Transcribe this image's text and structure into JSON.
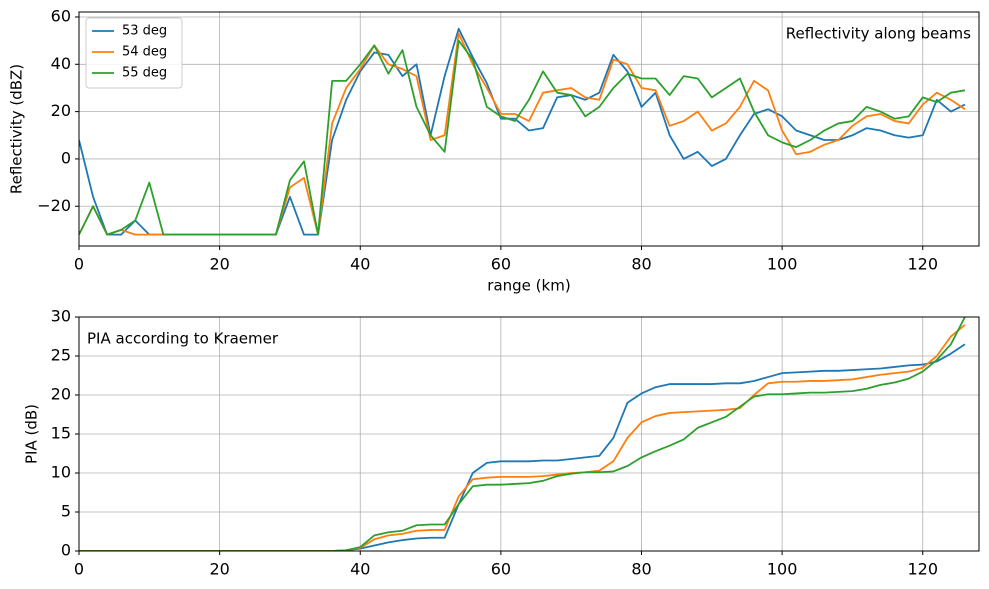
{
  "chart_data": [
    {
      "type": "line",
      "annotation": "Reflectivity along beams",
      "annotation_loc": "upper right",
      "x_label": "range (km)",
      "y_label": "Reflectivity (dBZ)",
      "x": [
        0,
        2,
        4,
        6,
        8,
        10,
        12,
        14,
        16,
        18,
        20,
        22,
        24,
        26,
        28,
        30,
        32,
        34,
        36,
        38,
        40,
        42,
        44,
        46,
        48,
        50,
        52,
        54,
        56,
        58,
        60,
        62,
        64,
        66,
        68,
        70,
        72,
        74,
        76,
        78,
        80,
        82,
        84,
        86,
        88,
        90,
        92,
        94,
        96,
        98,
        100,
        102,
        104,
        106,
        108,
        110,
        112,
        114,
        116,
        118,
        120,
        122,
        124,
        126
      ],
      "series": [
        {
          "name": "53 deg",
          "color": "#1f77b4",
          "values": [
            8,
            -16,
            -32,
            -32,
            -26,
            -32,
            -32,
            -32,
            -32,
            -32,
            -32,
            -32,
            -32,
            -32,
            -32,
            -16,
            -32,
            -32,
            8,
            25,
            37,
            45,
            44,
            35,
            40,
            10,
            35,
            55,
            43,
            32,
            17,
            17,
            12,
            13,
            26,
            27,
            25,
            28,
            44,
            37,
            22,
            28,
            10,
            0,
            3,
            -3,
            0,
            10,
            19,
            21,
            18,
            12,
            10,
            8,
            8,
            10,
            13,
            12,
            10,
            9,
            10,
            25,
            20,
            23
          ]
        },
        {
          "name": "54 deg",
          "color": "#ff7f0e",
          "values": [
            -32,
            -20,
            -32,
            -30,
            -32,
            -32,
            -32,
            -32,
            -32,
            -32,
            -32,
            -32,
            -32,
            -32,
            -32,
            -12,
            -8,
            -32,
            15,
            30,
            38,
            48,
            40,
            38,
            35,
            8,
            10,
            53,
            40,
            30,
            19,
            19,
            16,
            28,
            29,
            30,
            26,
            25,
            42,
            40,
            30,
            29,
            14,
            16,
            20,
            12,
            15,
            22,
            33,
            29,
            12,
            2,
            3,
            6,
            8,
            14,
            18,
            19,
            16,
            15,
            23,
            28,
            25,
            21
          ]
        },
        {
          "name": "55 deg",
          "color": "#2ca02c",
          "values": [
            -32,
            -20,
            -32,
            -30,
            -26,
            -10,
            -32,
            -32,
            -32,
            -32,
            -32,
            -32,
            -32,
            -32,
            -32,
            -9,
            -1,
            -32,
            33,
            33,
            40,
            48,
            36,
            46,
            22,
            10,
            3,
            50,
            42,
            22,
            18,
            16,
            25,
            37,
            28,
            27,
            18,
            22,
            30,
            36,
            34,
            34,
            27,
            35,
            34,
            26,
            30,
            34,
            20,
            10,
            7,
            5,
            8,
            12,
            15,
            16,
            22,
            20,
            17,
            18,
            26,
            24,
            28,
            29
          ]
        }
      ],
      "xlim": [
        0,
        128
      ],
      "ylim": [
        -36.8,
        62.1
      ],
      "xticks": [
        0,
        20,
        40,
        60,
        80,
        100,
        120
      ],
      "yticks": [
        {
          "value": -20,
          "label": "−20"
        },
        0,
        20,
        40,
        60
      ],
      "grid": true,
      "legend": "upper left"
    },
    {
      "type": "line",
      "annotation": "PIA according to Kraemer",
      "annotation_loc": "upper left",
      "y_label": "PIA (dB)",
      "x": [
        0,
        2,
        4,
        6,
        8,
        10,
        12,
        14,
        16,
        18,
        20,
        22,
        24,
        26,
        28,
        30,
        32,
        34,
        36,
        38,
        40,
        42,
        44,
        46,
        48,
        50,
        52,
        54,
        56,
        58,
        60,
        62,
        64,
        66,
        68,
        70,
        72,
        74,
        76,
        78,
        80,
        82,
        84,
        86,
        88,
        90,
        92,
        94,
        96,
        98,
        100,
        102,
        104,
        106,
        108,
        110,
        112,
        114,
        116,
        118,
        120,
        122,
        124,
        126
      ],
      "series": [
        {
          "color": "#1f77b4",
          "values": [
            0,
            0,
            0,
            0,
            0,
            0,
            0,
            0,
            0,
            0,
            0,
            0,
            0,
            0,
            0,
            0,
            0,
            0,
            0,
            0.1,
            0.3,
            0.7,
            1.1,
            1.4,
            1.6,
            1.7,
            1.7,
            6,
            10,
            11.3,
            11.5,
            11.5,
            11.5,
            11.6,
            11.6,
            11.8,
            12,
            12.2,
            14.5,
            19,
            20.2,
            21,
            21.4,
            21.4,
            21.4,
            21.4,
            21.5,
            21.5,
            21.8,
            22.3,
            22.8,
            22.9,
            23,
            23.1,
            23.1,
            23.2,
            23.3,
            23.4,
            23.6,
            23.8,
            23.9,
            24.3,
            25.3,
            26.5
          ]
        },
        {
          "color": "#ff7f0e",
          "values": [
            0,
            0,
            0,
            0,
            0,
            0,
            0,
            0,
            0,
            0,
            0,
            0,
            0,
            0,
            0,
            0,
            0,
            0,
            0,
            0.1,
            0.4,
            1.5,
            2,
            2.2,
            2.6,
            2.7,
            2.7,
            7,
            9.2,
            9.4,
            9.5,
            9.5,
            9.5,
            9.6,
            9.8,
            10,
            10.1,
            10.3,
            11.5,
            14.5,
            16.5,
            17.3,
            17.7,
            17.8,
            17.9,
            18,
            18.1,
            18.3,
            20,
            21.5,
            21.7,
            21.7,
            21.8,
            21.8,
            21.9,
            22,
            22.3,
            22.6,
            22.8,
            23,
            23.5,
            25,
            27.5,
            29
          ]
        },
        {
          "color": "#2ca02c",
          "values": [
            0,
            0,
            0,
            0,
            0,
            0,
            0,
            0,
            0,
            0,
            0,
            0,
            0,
            0,
            0,
            0,
            0,
            0,
            0,
            0.1,
            0.5,
            2,
            2.4,
            2.6,
            3.3,
            3.4,
            3.4,
            6,
            8.3,
            8.5,
            8.5,
            8.6,
            8.7,
            9,
            9.6,
            9.9,
            10.1,
            10.1,
            10.2,
            10.9,
            12,
            12.8,
            13.5,
            14.3,
            15.8,
            16.5,
            17.2,
            18.5,
            19.8,
            20.1,
            20.1,
            20.2,
            20.3,
            20.3,
            20.4,
            20.5,
            20.8,
            21.3,
            21.6,
            22.1,
            23,
            24.5,
            26.5,
            30
          ]
        }
      ],
      "xlim": [
        0,
        128
      ],
      "ylim": [
        0,
        30
      ],
      "xticks": [
        0,
        20,
        40,
        60,
        80,
        100,
        120
      ],
      "yticks": [
        0,
        5,
        10,
        15,
        20,
        25,
        30
      ],
      "grid": true
    }
  ]
}
